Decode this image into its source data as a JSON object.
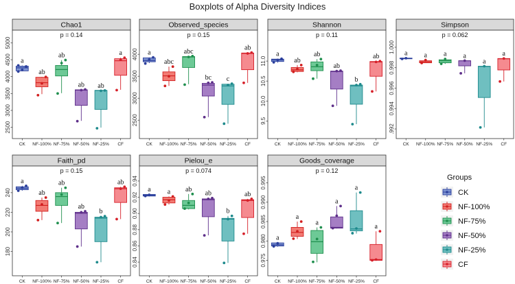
{
  "figure": {
    "title": "Boxplots of Alpha Diversity Indices",
    "legend_title": "Groups"
  },
  "chart_data": {
    "type": "box",
    "groups": [
      "CK",
      "NF-100%",
      "NF-75%",
      "NF-50%",
      "NF-25%",
      "CF"
    ],
    "group_colors": {
      "CK": {
        "fill": "#7f95d2",
        "stroke": "#2b3f9c"
      },
      "NF-100%": {
        "fill": "#f27b73",
        "stroke": "#d21f1f"
      },
      "NF-75%": {
        "fill": "#6dc996",
        "stroke": "#1f8f4e"
      },
      "NF-50%": {
        "fill": "#a57ec4",
        "stroke": "#5e2f8a"
      },
      "NF-25%": {
        "fill": "#6fbfc0",
        "stroke": "#1e8a8c"
      },
      "CF": {
        "fill": "#f58a8f",
        "stroke": "#d6202a"
      }
    },
    "legend_placement": "right",
    "panels": [
      {
        "title": "Chao1",
        "pvalue": "p = 0.14",
        "ylim": [
          2450,
          5050
        ],
        "yticks": [
          2500,
          3000,
          3500,
          4000,
          4500,
          5000
        ],
        "ytick_labels": [
          "2500",
          "3000",
          "3500",
          "4000",
          "4500",
          "5000"
        ],
        "boxes": [
          {
            "group": "CK",
            "min": 4160,
            "q1": 4170,
            "median": 4260,
            "q3": 4310,
            "max": 4330,
            "letter": "a",
            "points": [
              4150,
              4200,
              4300,
              4330
            ]
          },
          {
            "group": "NF-100%",
            "min": 3480,
            "q1": 3700,
            "median": 3820,
            "q3": 3980,
            "max": 3990,
            "letter": "ab",
            "points": [
              3450,
              3800,
              3990
            ]
          },
          {
            "group": "NF-75%",
            "min": 3510,
            "q1": 4020,
            "median": 4210,
            "q3": 4330,
            "max": 4490,
            "letter": "ab",
            "points": [
              3500,
              4400,
              4490
            ]
          },
          {
            "group": "NF-50%",
            "min": 2690,
            "q1": 3150,
            "median": 3600,
            "q3": 3610,
            "max": 3620,
            "letter": "ab",
            "points": [
              2680,
              3600,
              3620
            ]
          },
          {
            "group": "NF-25%",
            "min": 2490,
            "q1": 3030,
            "median": 3590,
            "q3": 3590,
            "max": 3590,
            "letter": "ab",
            "points": [
              2470,
              3580,
              3590
            ]
          },
          {
            "group": "CF",
            "min": 3610,
            "q1": 4040,
            "median": 4470,
            "q3": 4530,
            "max": 4560,
            "letter": "a",
            "points": [
              3600,
              4500,
              4560
            ]
          }
        ]
      },
      {
        "title": "Observed_species",
        "pvalue": "p = 0.15",
        "ylim": [
          2300,
          4300
        ],
        "yticks": [
          2500,
          3000,
          3500,
          4000
        ],
        "ytick_labels": [
          "2500",
          "3000",
          "3500",
          "4000"
        ],
        "boxes": [
          {
            "group": "CK",
            "min": 3800,
            "q1": 3830,
            "median": 3860,
            "q3": 3920,
            "max": 3930,
            "letter": "a",
            "points": [
              3790,
              3880,
              3930
            ]
          },
          {
            "group": "NF-100%",
            "min": 3280,
            "q1": 3400,
            "median": 3510,
            "q3": 3600,
            "max": 3720,
            "letter": "abc",
            "points": [
              3280,
              3500,
              3720
            ]
          },
          {
            "group": "NF-75%",
            "min": 3320,
            "q1": 3700,
            "median": 3940,
            "q3": 3950,
            "max": 3960,
            "letter": "abc",
            "points": [
              3310,
              3940,
              3960
            ]
          },
          {
            "group": "NF-50%",
            "min": 2570,
            "q1": 3050,
            "median": 3300,
            "q3": 3340,
            "max": 3360,
            "letter": "bc",
            "points": [
              2570,
              3350,
              3360
            ]
          },
          {
            "group": "NF-25%",
            "min": 2420,
            "q1": 2860,
            "median": 3280,
            "q3": 3320,
            "max": 3330,
            "letter": "c",
            "points": [
              2420,
              3300,
              3330
            ]
          },
          {
            "group": "CF",
            "min": 3350,
            "q1": 3650,
            "median": 4020,
            "q3": 4030,
            "max": 4040,
            "letter": "ab",
            "points": [
              3350,
              4020,
              4040
            ]
          }
        ]
      },
      {
        "title": "Shannon",
        "pvalue": "p = 0.11",
        "ylim": [
          9.3,
          11.5
        ],
        "yticks": [
          9.5,
          10.0,
          10.5,
          11.0
        ],
        "ytick_labels": [
          "9.5",
          "10.0",
          "10.5",
          "11.0"
        ],
        "boxes": [
          {
            "group": "CK",
            "min": 10.96,
            "q1": 10.99,
            "median": 11.03,
            "q3": 11.05,
            "max": 11.06,
            "letter": "a",
            "points": [
              10.97,
              11.03,
              11.06
            ]
          },
          {
            "group": "NF-100%",
            "min": 10.72,
            "q1": 10.74,
            "median": 10.78,
            "q3": 10.84,
            "max": 10.9,
            "letter": "ab",
            "points": [
              10.73,
              10.8,
              10.9
            ]
          },
          {
            "group": "NF-75%",
            "min": 10.56,
            "q1": 10.76,
            "median": 10.86,
            "q3": 10.98,
            "max": 11.05,
            "letter": "ab",
            "points": [
              10.56,
              10.9,
              11.05
            ]
          },
          {
            "group": "NF-50%",
            "min": 9.88,
            "q1": 10.3,
            "median": 10.74,
            "q3": 10.75,
            "max": 10.76,
            "letter": "ab",
            "points": [
              9.88,
              10.75,
              10.76
            ]
          },
          {
            "group": "NF-25%",
            "min": 9.42,
            "q1": 9.92,
            "median": 10.38,
            "q3": 10.4,
            "max": 10.42,
            "letter": "b",
            "points": [
              9.42,
              10.4,
              10.42
            ]
          },
          {
            "group": "CF",
            "min": 10.24,
            "q1": 10.62,
            "median": 10.98,
            "q3": 10.99,
            "max": 11.0,
            "letter": "ab",
            "points": [
              10.24,
              10.98,
              11.0
            ]
          }
        ]
      },
      {
        "title": "Simpson",
        "pvalue": "p = 0.062",
        "ylim": [
          0.992,
          1.0006
        ],
        "yticks": [
          0.992,
          0.994,
          0.996,
          0.998,
          1.0
        ],
        "ytick_labels": [
          ".992",
          "0.994",
          "0.996",
          "0.998",
          "1.000"
        ],
        "boxes": [
          {
            "group": "CK",
            "min": 0.99885,
            "q1": 0.99888,
            "median": 0.99891,
            "q3": 0.99894,
            "max": 0.99896,
            "letter": "a",
            "points": [
              0.99886,
              0.99893
            ]
          },
          {
            "group": "NF-100%",
            "min": 0.99845,
            "q1": 0.99848,
            "median": 0.99858,
            "q3": 0.99868,
            "max": 0.99876,
            "letter": "a",
            "points": [
              0.99846,
              0.99875
            ]
          },
          {
            "group": "NF-75%",
            "min": 0.99837,
            "q1": 0.99848,
            "median": 0.99868,
            "q3": 0.99878,
            "max": 0.99888,
            "letter": "a",
            "points": [
              0.99838,
              0.99885
            ]
          },
          {
            "group": "NF-50%",
            "min": 0.99745,
            "q1": 0.99818,
            "median": 0.99868,
            "q3": 0.99868,
            "max": 0.9987,
            "letter": "a",
            "points": [
              0.99745,
              0.99869
            ]
          },
          {
            "group": "NF-25%",
            "min": 0.99215,
            "q1": 0.99508,
            "median": 0.99812,
            "q3": 0.99814,
            "max": 0.99816,
            "letter": "a",
            "points": [
              0.99215,
              0.99815
            ]
          },
          {
            "group": "CF",
            "min": 0.99665,
            "q1": 0.99778,
            "median": 0.99888,
            "q3": 0.9989,
            "max": 0.99892,
            "letter": "a",
            "points": [
              0.99665,
              0.9989
            ]
          }
        ]
      },
      {
        "title": "Faith_pd",
        "pvalue": "p = 0.15",
        "ylim": [
          165,
          256
        ],
        "yticks": [
          180,
          200,
          220,
          240
        ],
        "ytick_labels": [
          "180",
          "200",
          "220",
          "240"
        ],
        "boxes": [
          {
            "group": "CK",
            "min": 242,
            "q1": 243,
            "median": 244.5,
            "q3": 246,
            "max": 247,
            "letter": "a",
            "points": [
              242,
              245,
              247
            ]
          },
          {
            "group": "NF-100%",
            "min": 212,
            "q1": 221,
            "median": 227,
            "q3": 232,
            "max": 235,
            "letter": "ab",
            "points": [
              212,
              228,
              235
            ]
          },
          {
            "group": "NF-75%",
            "min": 209,
            "q1": 227,
            "median": 236,
            "q3": 240,
            "max": 245,
            "letter": "ab",
            "points": [
              209,
              238,
              245
            ]
          },
          {
            "group": "NF-50%",
            "min": 185,
            "q1": 203,
            "median": 219,
            "q3": 220,
            "max": 221,
            "letter": "ab",
            "points": [
              185,
              220,
              221
            ]
          },
          {
            "group": "NF-25%",
            "min": 169,
            "q1": 190,
            "median": 214,
            "q3": 215,
            "max": 216,
            "letter": "b",
            "points": [
              169,
              215,
              216
            ]
          },
          {
            "group": "CF",
            "min": 213,
            "q1": 230,
            "median": 244,
            "q3": 245,
            "max": 246,
            "letter": "ab",
            "points": [
              213,
              244,
              246
            ]
          }
        ]
      },
      {
        "title": "Pielou_e",
        "pvalue": "p = 0.074",
        "ylim": [
          0.835,
          0.945
        ],
        "yticks": [
          0.84,
          0.86,
          0.88,
          0.9,
          0.92,
          0.94
        ],
        "ytick_labels": [
          "0.84",
          "0.86",
          "0.88",
          "0.90",
          "0.92",
          "0.94"
        ],
        "boxes": [
          {
            "group": "CK",
            "min": 0.921,
            "q1": 0.9215,
            "median": 0.9225,
            "q3": 0.9235,
            "max": 0.924,
            "letter": "a",
            "points": [
              0.9215,
              0.923
            ]
          },
          {
            "group": "NF-100%",
            "min": 0.911,
            "q1": 0.913,
            "median": 0.917,
            "q3": 0.92,
            "max": 0.921,
            "letter": "a",
            "points": [
              0.911,
              0.916,
              0.921
            ]
          },
          {
            "group": "NF-75%",
            "min": 0.905,
            "q1": 0.906,
            "median": 0.91,
            "q3": 0.916,
            "max": 0.924,
            "letter": "ab",
            "points": [
              0.906,
              0.913,
              0.924
            ]
          },
          {
            "group": "NF-50%",
            "min": 0.873,
            "q1": 0.896,
            "median": 0.917,
            "q3": 0.918,
            "max": 0.919,
            "letter": "ab",
            "points": [
              0.873,
              0.918,
              0.919
            ]
          },
          {
            "group": "NF-25%",
            "min": 0.839,
            "q1": 0.866,
            "median": 0.893,
            "q3": 0.894,
            "max": 0.897,
            "letter": "b",
            "points": [
              0.839,
              0.893,
              0.897
            ]
          },
          {
            "group": "CF",
            "min": 0.875,
            "q1": 0.895,
            "median": 0.916,
            "q3": 0.917,
            "max": 0.918,
            "letter": "ab",
            "points": [
              0.875,
              0.916,
              0.918
            ]
          }
        ]
      },
      {
        "title": "Goods_coverage",
        "pvalue": "p = 0.12",
        "ylim": [
          0.9735,
          0.9965
        ],
        "yticks": [
          0.975,
          0.98,
          0.985,
          0.99,
          0.995
        ],
        "ytick_labels": [
          "0.975",
          "0.980",
          "0.985",
          "0.990",
          "0.995"
        ],
        "boxes": [
          {
            "group": "CK",
            "min": 0.9785,
            "q1": 0.9787,
            "median": 0.979,
            "q3": 0.9795,
            "max": 0.9796,
            "letter": "a",
            "points": [
              0.9786,
              0.9794
            ]
          },
          {
            "group": "NF-100%",
            "min": 0.9805,
            "q1": 0.9812,
            "median": 0.9822,
            "q3": 0.9835,
            "max": 0.985,
            "letter": "a",
            "points": [
              0.9806,
              0.9825,
              0.985
            ]
          },
          {
            "group": "NF-75%",
            "min": 0.9745,
            "q1": 0.9768,
            "median": 0.9798,
            "q3": 0.9827,
            "max": 0.9835,
            "letter": "a",
            "points": [
              0.9746,
              0.9805,
              0.9835
            ]
          },
          {
            "group": "NF-50%",
            "min": 0.9832,
            "q1": 0.9833,
            "median": 0.9835,
            "q3": 0.9862,
            "max": 0.989,
            "letter": "a",
            "points": [
              0.9833,
              0.9865,
              0.989
            ]
          },
          {
            "group": "NF-25%",
            "min": 0.9819,
            "q1": 0.9826,
            "median": 0.9831,
            "q3": 0.9878,
            "max": 0.9925,
            "letter": "a",
            "points": [
              0.982,
              0.9832,
              0.9925
            ]
          },
          {
            "group": "CF",
            "min": 0.9749,
            "q1": 0.975,
            "median": 0.9752,
            "q3": 0.9791,
            "max": 0.9825,
            "letter": "a",
            "points": [
              0.975,
              0.9752,
              0.9825
            ]
          }
        ]
      }
    ]
  }
}
